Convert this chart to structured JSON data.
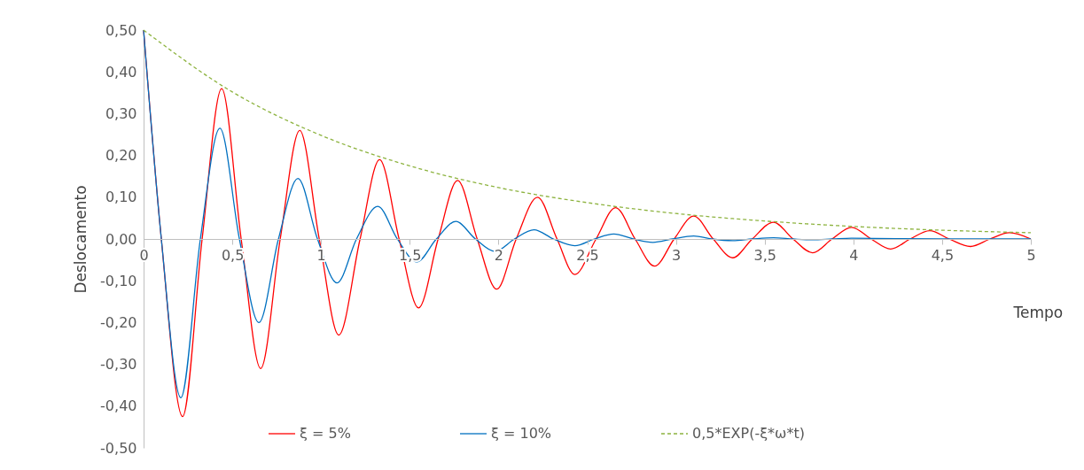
{
  "chart_data": {
    "type": "line",
    "xlabel": "Tempo",
    "ylabel": "Deslocamento",
    "legend": "bottom",
    "marker": "none",
    "xlim": [
      0,
      5
    ],
    "xticks": [
      0,
      {
        "value": 0.5,
        "label": "0,5"
      },
      1,
      {
        "value": 1.5,
        "label": "1,5"
      },
      2,
      {
        "value": 2.5,
        "label": "2,5"
      },
      3,
      {
        "value": 3.5,
        "label": "3,5"
      },
      4,
      {
        "value": 4.5,
        "label": "4,5"
      },
      5
    ],
    "ylim": [
      -0.5,
      0.5
    ],
    "yticks": [
      {
        "value": -0.5,
        "label": "-0,50"
      },
      {
        "value": -0.4,
        "label": "-0,40"
      },
      {
        "value": -0.3,
        "label": "-0,30"
      },
      {
        "value": -0.2,
        "label": "-0,20"
      },
      {
        "value": -0.1,
        "label": "-0,10"
      },
      {
        "value": 0,
        "label": "0,00"
      },
      {
        "value": 0.1,
        "label": "0,10"
      },
      {
        "value": 0.2,
        "label": "0,20"
      },
      {
        "value": 0.3,
        "label": "0,30"
      },
      {
        "value": 0.4,
        "label": "0,40"
      },
      {
        "value": 0.5,
        "label": "0,50"
      }
    ],
    "series": [
      {
        "name": "ξ = 5%",
        "color": "#ff0000",
        "line_style": "solid",
        "x": [
          0,
          0.1,
          0.22,
          0.33,
          0.44,
          0.55,
          0.66,
          0.77,
          0.88,
          0.99,
          1.1,
          1.22,
          1.33,
          1.44,
          1.55,
          1.66,
          1.77,
          1.88,
          1.99,
          2.1,
          2.22,
          2.33,
          2.43,
          2.55,
          2.66,
          2.77,
          2.88,
          2.99,
          3.1,
          3.21,
          3.32,
          3.43,
          3.55,
          3.66,
          3.77,
          3.88,
          3.99,
          4.1,
          4.21,
          4.32,
          4.43,
          4.54,
          4.66,
          4.77,
          4.88,
          5
        ],
        "values": [
          0.5,
          0,
          -0.425,
          0,
          0.36,
          0,
          -0.31,
          0,
          0.26,
          0,
          -0.23,
          0,
          0.19,
          0,
          -0.165,
          0,
          0.14,
          0,
          -0.12,
          0,
          0.1,
          0,
          -0.085,
          0,
          0.075,
          0,
          -0.065,
          0,
          0.055,
          0,
          -0.045,
          0,
          0.04,
          0,
          -0.033,
          0,
          0.028,
          0,
          -0.024,
          0,
          0.02,
          0,
          -0.018,
          0,
          0.015,
          0
        ]
      },
      {
        "name": "ξ = 10%",
        "color": "#0070c0",
        "line_style": "solid",
        "x": [
          0,
          0.1,
          0.21,
          0.32,
          0.43,
          0.54,
          0.65,
          0.76,
          0.87,
          0.98,
          1.09,
          1.2,
          1.32,
          1.43,
          1.54,
          1.65,
          1.76,
          1.87,
          1.98,
          2.09,
          2.2,
          2.31,
          2.43,
          2.54,
          2.65,
          2.76,
          2.87,
          2.98,
          3.1,
          3.2,
          3.32,
          3.43,
          3.55,
          3.66,
          3.77,
          3.88,
          3.99,
          4.5,
          5
        ],
        "values": [
          0.5,
          0,
          -0.38,
          0,
          0.265,
          0,
          -0.2,
          0,
          0.145,
          0,
          -0.105,
          0,
          0.078,
          0,
          -0.055,
          0,
          0.042,
          0,
          -0.03,
          0,
          0.022,
          0,
          -0.016,
          0,
          0.012,
          0,
          -0.008,
          0,
          0.007,
          0,
          -0.004,
          0,
          0.003,
          0,
          -0.002,
          0,
          0.002,
          0,
          0
        ]
      },
      {
        "name": "0,5*EXP(-ξ*ω*t)",
        "color": "#8db33f",
        "line_style": "dashed",
        "x": [
          0,
          0.5,
          1,
          1.5,
          2,
          2.5,
          3,
          3.5,
          4,
          4.5,
          5
        ],
        "values": [
          0.5,
          0.352,
          0.248,
          0.175,
          0.123,
          0.087,
          0.061,
          0.043,
          0.03,
          0.021,
          0.015
        ]
      }
    ]
  }
}
